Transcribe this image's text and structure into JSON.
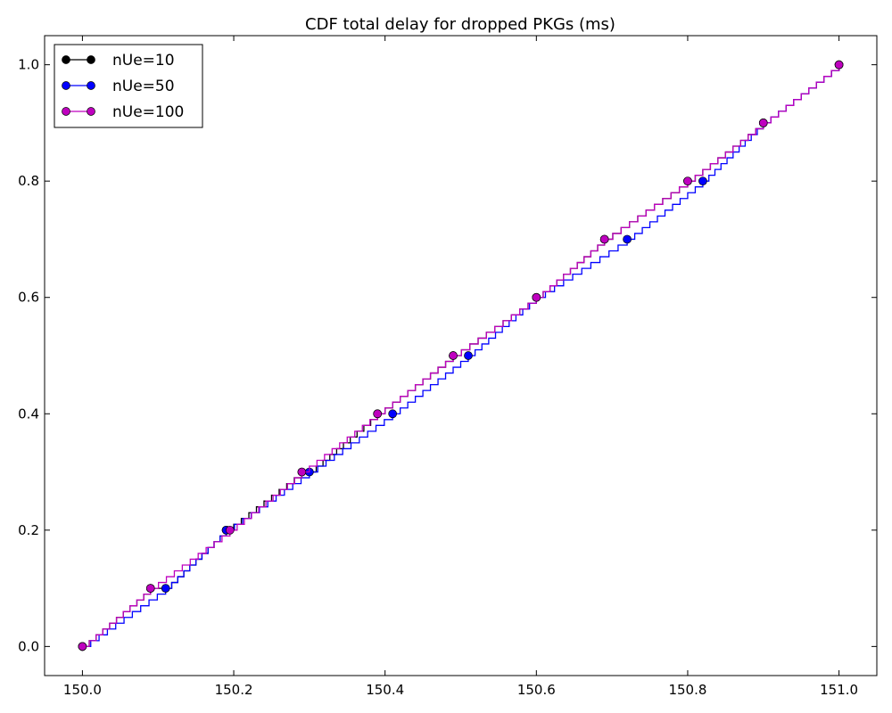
{
  "chart_data": {
    "type": "line",
    "title": "CDF total delay for dropped PKGs (ms)",
    "xlabel": "",
    "ylabel": "",
    "xlim": [
      149.95,
      151.05
    ],
    "ylim": [
      -0.05,
      1.05
    ],
    "xticks": [
      150.0,
      150.2,
      150.4,
      150.6,
      150.8,
      151.0
    ],
    "xtick_labels": [
      "150.0",
      "150.2",
      "150.4",
      "150.6",
      "150.8",
      "151.0"
    ],
    "yticks": [
      0.0,
      0.2,
      0.4,
      0.6,
      0.8,
      1.0
    ],
    "ytick_labels": [
      "0.0",
      "0.2",
      "0.4",
      "0.6",
      "0.8",
      "1.0"
    ],
    "grid": false,
    "legend_position": "top-left",
    "series": [
      {
        "name": "nUe=10",
        "color": "#000000",
        "x": [
          150.0,
          150.09,
          150.11,
          150.19,
          150.29,
          150.3,
          150.39,
          150.49,
          150.6,
          150.69,
          150.8,
          150.9,
          151.0
        ],
        "y": [
          0.0,
          0.1,
          0.1,
          0.2,
          0.3,
          0.3,
          0.4,
          0.5,
          0.6,
          0.7,
          0.8,
          0.9,
          1.0
        ],
        "markers": {
          "x": [
            150.0,
            150.09,
            150.19,
            150.29,
            150.39,
            150.49,
            150.6,
            150.69,
            150.8,
            150.9,
            151.0
          ],
          "y": [
            0.0,
            0.1,
            0.2,
            0.3,
            0.4,
            0.5,
            0.6,
            0.7,
            0.8,
            0.9,
            1.0
          ]
        }
      },
      {
        "name": "nUe=50",
        "color": "#0000ff",
        "x": [
          150.0,
          150.11,
          150.19,
          150.3,
          150.41,
          150.51,
          150.6,
          150.72,
          150.82,
          150.9,
          151.0
        ],
        "y": [
          0.0,
          0.1,
          0.2,
          0.3,
          0.4,
          0.5,
          0.6,
          0.7,
          0.8,
          0.9,
          1.0
        ],
        "markers": {
          "x": [
            150.0,
            150.11,
            150.19,
            150.3,
            150.41,
            150.51,
            150.6,
            150.72,
            150.82,
            150.9,
            151.0
          ],
          "y": [
            0.0,
            0.1,
            0.2,
            0.3,
            0.4,
            0.5,
            0.6,
            0.7,
            0.8,
            0.9,
            1.0
          ]
        }
      },
      {
        "name": "nUe=100",
        "color": "#bf00bf",
        "x": [
          150.0,
          150.09,
          150.195,
          150.29,
          150.39,
          150.49,
          150.6,
          150.69,
          150.8,
          150.9,
          151.0
        ],
        "y": [
          0.0,
          0.1,
          0.2,
          0.3,
          0.4,
          0.5,
          0.6,
          0.7,
          0.8,
          0.9,
          1.0
        ],
        "markers": {
          "x": [
            150.0,
            150.09,
            150.195,
            150.29,
            150.39,
            150.49,
            150.6,
            150.69,
            150.8,
            150.9,
            151.0
          ],
          "y": [
            0.0,
            0.1,
            0.2,
            0.3,
            0.4,
            0.5,
            0.6,
            0.7,
            0.8,
            0.9,
            1.0
          ]
        }
      }
    ]
  }
}
